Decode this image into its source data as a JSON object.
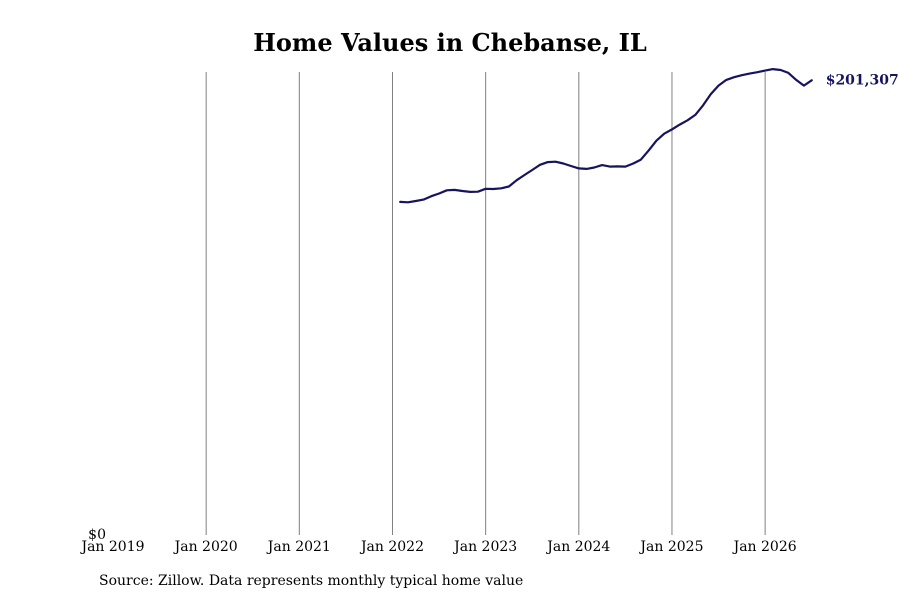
{
  "title": "Home Values in Chebanse, IL",
  "source": "Source: Zillow. Data represents monthly typical home value",
  "colors": {
    "line": "#17145f",
    "grid": "#808080",
    "text": "#000000"
  },
  "chart_data": {
    "type": "line",
    "title": "Home Values in Chebanse, IL",
    "x_tick_labels": [
      "Jan 2019",
      "Jan 2020",
      "Jan 2021",
      "Jan 2022",
      "Jan 2023",
      "Jan 2024",
      "Jan 2025",
      "Jan 2026"
    ],
    "x_ticks": [
      "2019-01",
      "2020-01",
      "2021-01",
      "2022-01",
      "2023-01",
      "2024-01",
      "2025-01",
      "2026-01"
    ],
    "y_tick_labels": [
      "$0"
    ],
    "xlim": [
      "2019-01",
      "2026-10"
    ],
    "ylim": [
      0,
      205000
    ],
    "grid": "vertical",
    "end_label": "$201,307",
    "series": [
      {
        "x": [
          "2022-02",
          "2022-03",
          "2022-04",
          "2022-05",
          "2022-06",
          "2022-07",
          "2022-08",
          "2022-09",
          "2022-10",
          "2022-11",
          "2022-12",
          "2023-01",
          "2023-02",
          "2023-03",
          "2023-04",
          "2023-05",
          "2023-06",
          "2023-07",
          "2023-08",
          "2023-09",
          "2023-10",
          "2023-11",
          "2023-12",
          "2024-01",
          "2024-02",
          "2024-03",
          "2024-04",
          "2024-05",
          "2024-06",
          "2024-07",
          "2024-08",
          "2024-09",
          "2024-10",
          "2024-11",
          "2024-12",
          "2025-01",
          "2025-02",
          "2025-03",
          "2025-04",
          "2025-05",
          "2025-06",
          "2025-07",
          "2025-08",
          "2025-09",
          "2025-10",
          "2025-11",
          "2025-12",
          "2026-01",
          "2026-02",
          "2026-03",
          "2026-04",
          "2026-05",
          "2026-06",
          "2026-07"
        ],
        "values": [
          147500,
          147300,
          147900,
          148500,
          150000,
          151200,
          152600,
          152800,
          152300,
          151900,
          152000,
          153300,
          153200,
          153500,
          154300,
          157100,
          159400,
          161600,
          163900,
          165100,
          165300,
          164500,
          163400,
          162300,
          162100,
          162700,
          163800,
          163100,
          163200,
          163100,
          164500,
          166200,
          170300,
          174600,
          177700,
          179600,
          181700,
          183600,
          186000,
          190200,
          195200,
          199000,
          201500,
          202700,
          203600,
          204300,
          204900,
          205600,
          206300,
          205900,
          204600,
          201500,
          199000,
          201307
        ]
      }
    ]
  }
}
